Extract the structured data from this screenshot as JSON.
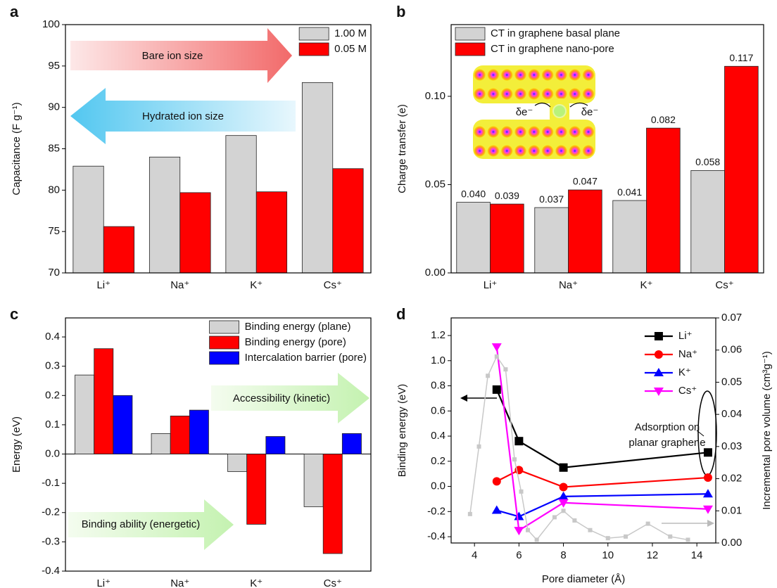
{
  "chart_data": [
    {
      "type": "bar",
      "label": "a",
      "ylabel": "Capacitance (F g⁻¹)",
      "categories": [
        "Li⁺",
        "Na⁺",
        "K⁺",
        "Cs⁺"
      ],
      "series": [
        {
          "name": "1.00 M",
          "color": "#d3d3d3",
          "values": [
            82.9,
            84.0,
            86.6,
            93.0
          ]
        },
        {
          "name": "0.05 M",
          "color": "#ff0000",
          "values": [
            75.6,
            79.7,
            79.8,
            82.6
          ]
        }
      ],
      "ylim": [
        70,
        100
      ],
      "yticks": [
        70,
        75,
        80,
        85,
        90,
        95,
        100
      ],
      "legend": "upper right",
      "annotations": [
        "Bare ion size",
        "Hydrated ion size"
      ]
    },
    {
      "type": "bar",
      "label": "b",
      "ylabel": "Charge transfer (e)",
      "categories": [
        "Li⁺",
        "Na⁺",
        "K⁺",
        "Cs⁺"
      ],
      "series": [
        {
          "name": "CT in graphene basal plane",
          "color": "#d3d3d3",
          "values": [
            0.04,
            0.037,
            0.041,
            0.058
          ],
          "value_labels": [
            "0.040",
            "0.037",
            "0.041",
            "0.058"
          ]
        },
        {
          "name": "CT in graphene nano-pore",
          "color": "#ff0000",
          "values": [
            0.039,
            0.047,
            0.082,
            0.117
          ],
          "value_labels": [
            "0.039",
            "0.047",
            "0.082",
            "0.117"
          ]
        }
      ],
      "ylim": [
        0,
        0.1406
      ],
      "yticks": [
        {
          "value": 0,
          "label": "0.00"
        },
        {
          "value": 0.05,
          "label": "0.05"
        },
        {
          "value": 0.1,
          "label": "0.10"
        }
      ],
      "legend": "upper left",
      "annotations": [
        "δe⁻",
        "δe⁻"
      ]
    },
    {
      "type": "bar",
      "label": "c",
      "ylabel": "Energy (eV)",
      "categories": [
        "Li⁺",
        "Na⁺",
        "K⁺",
        "Cs⁺"
      ],
      "series": [
        {
          "name": "Binding energy (plane)",
          "color": "#d3d3d3",
          "values": [
            0.27,
            0.07,
            -0.06,
            -0.18
          ]
        },
        {
          "name": "Binding energy (pore)",
          "color": "#ff0000",
          "values": [
            0.36,
            0.13,
            -0.24,
            -0.34
          ]
        },
        {
          "name": "Intercalation barrier (pore)",
          "color": "#0000ff",
          "values": [
            0.2,
            0.15,
            0.06,
            0.07
          ]
        }
      ],
      "ylim": [
        -0.4,
        0.465
      ],
      "yticks": [
        -0.4,
        -0.3,
        -0.2,
        -0.1,
        {
          "value": 0,
          "label": "0.0"
        },
        0.1,
        0.2,
        0.3,
        0.4
      ],
      "legend": "upper right",
      "annotations": [
        "Accessibility (kinetic)",
        "Binding ability (energetic)"
      ]
    },
    {
      "type": "line",
      "label": "d",
      "ylabel": "Binding energy (eV)",
      "y2label": "Incremental pore volume (cm³g⁻¹)",
      "xlabel": "Pore diameter (Å)",
      "series": [
        {
          "name": "Li⁺",
          "color": "#000000",
          "marker": "square",
          "x": [
            5,
            6,
            8,
            14.5
          ],
          "y": [
            0.77,
            0.36,
            0.15,
            0.27
          ]
        },
        {
          "name": "Na⁺",
          "color": "#ff0000",
          "marker": "circle",
          "x": [
            5,
            6,
            8,
            14.5
          ],
          "y": [
            0.04,
            0.13,
            -0.005,
            0.07
          ]
        },
        {
          "name": "K⁺",
          "color": "#0000ff",
          "marker": "triangle-up",
          "x": [
            5,
            6,
            8,
            14.5
          ],
          "y": [
            -0.19,
            -0.24,
            -0.08,
            -0.06
          ]
        },
        {
          "name": "Cs⁺",
          "color": "#ff00ff",
          "marker": "triangle-down",
          "x": [
            5,
            6,
            8,
            14.5
          ],
          "y": [
            1.11,
            -0.35,
            -0.13,
            -0.18
          ]
        },
        {
          "color": "#c8c8c8",
          "marker": "small-square",
          "axis": "y2",
          "x": [
            3.8,
            4.2,
            4.6,
            5.0,
            5.4,
            5.8,
            6.1,
            6.4,
            6.8,
            7.6,
            8.0,
            8.5,
            9.2,
            10.0,
            10.8,
            11.8,
            12.8,
            13.6
          ],
          "y": [
            0.009,
            0.03,
            0.052,
            0.058,
            0.054,
            0.026,
            0.016,
            0.004,
            0.001,
            0.008,
            0.01,
            0.007,
            0.004,
            0.0015,
            0.002,
            0.006,
            0.002,
            0.001
          ]
        }
      ],
      "xlim": [
        2.95,
        14.85
      ],
      "xticks": [
        4,
        6,
        8,
        10,
        12,
        14
      ],
      "ylim": [
        -0.45,
        1.34
      ],
      "yticks": [
        -0.4,
        -0.2,
        {
          "value": 0,
          "label": "0.0"
        },
        0.2,
        0.4,
        0.6,
        0.8,
        {
          "value": 1,
          "label": "1.0"
        },
        1.2
      ],
      "y2lim": [
        0,
        0.07
      ],
      "y2ticks": [
        {
          "value": 0,
          "label": "0.00"
        },
        {
          "value": 0.01,
          "label": "0.01"
        },
        {
          "value": 0.02,
          "label": "0.02"
        },
        {
          "value": 0.03,
          "label": "0.03"
        },
        {
          "value": 0.04,
          "label": "0.04"
        },
        {
          "value": 0.05,
          "label": "0.05"
        },
        {
          "value": 0.06,
          "label": "0.06"
        },
        {
          "value": 0.07,
          "label": "0.07"
        }
      ],
      "legend": "upper right",
      "annotations": [
        "Adsorption on",
        "planar graphene"
      ]
    }
  ]
}
